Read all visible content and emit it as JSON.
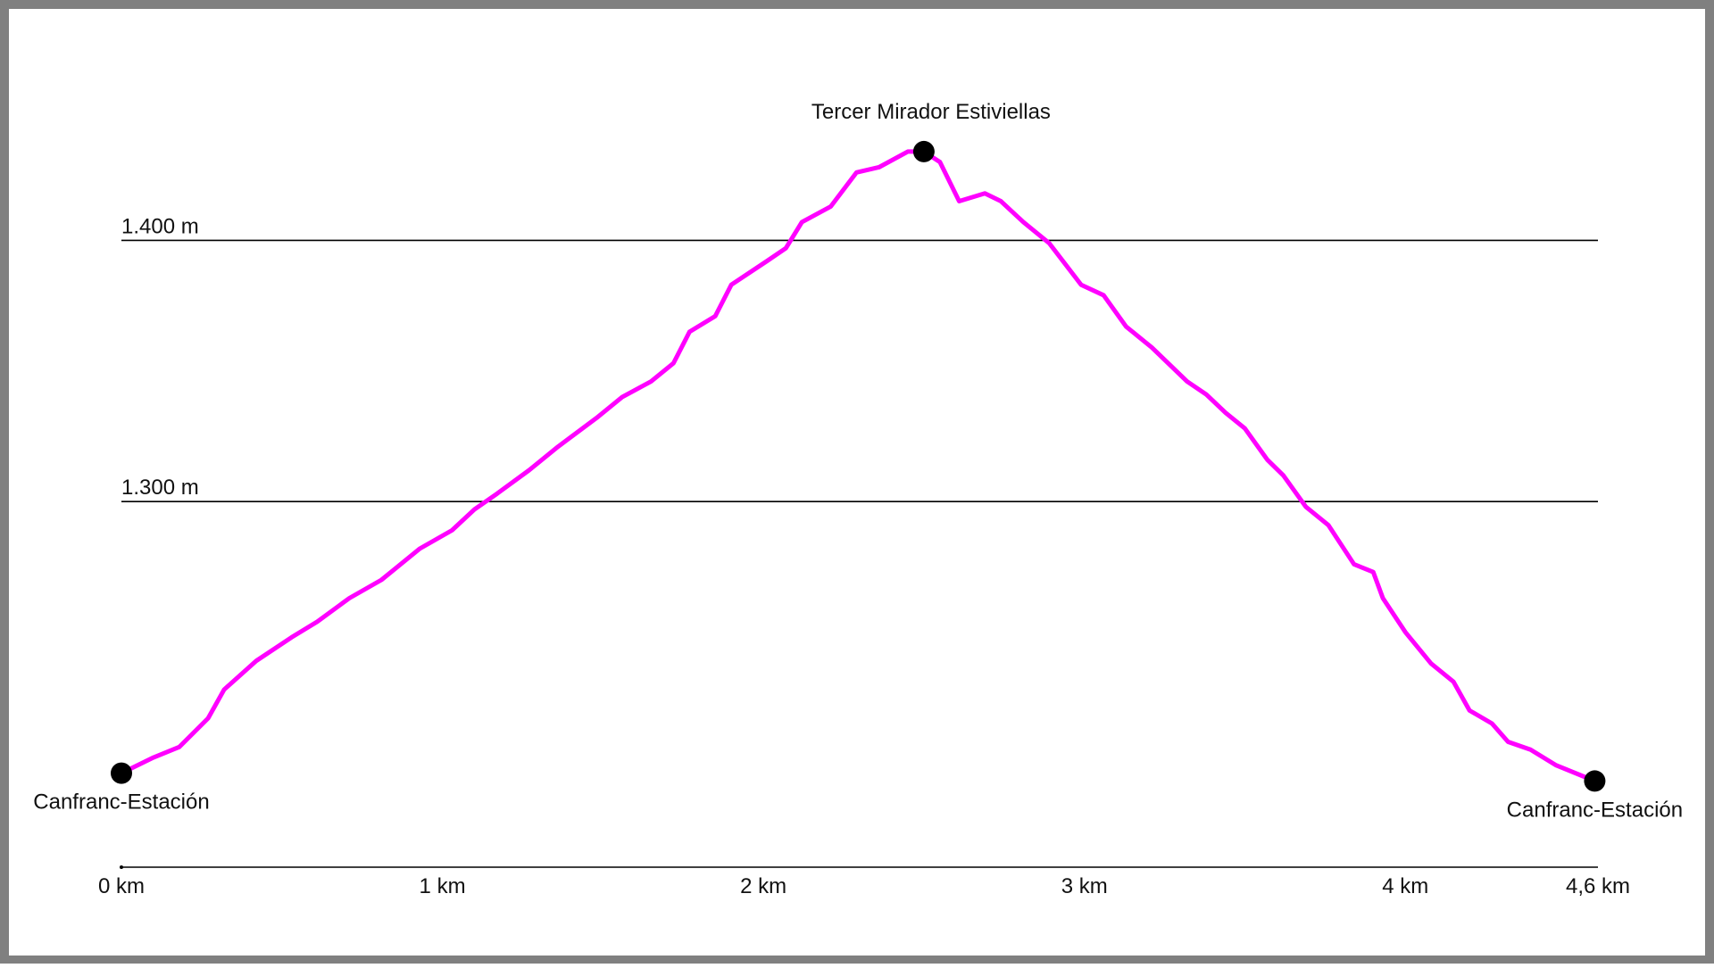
{
  "chart_data": {
    "type": "line",
    "x": [
      0,
      0.1,
      0.18,
      0.27,
      0.32,
      0.42,
      0.53,
      0.61,
      0.71,
      0.81,
      0.93,
      1.03,
      1.1,
      1.17,
      1.27,
      1.36,
      1.48,
      1.56,
      1.65,
      1.72,
      1.77,
      1.85,
      1.9,
      2.01,
      2.07,
      2.12,
      2.21,
      2.29,
      2.36,
      2.45,
      2.5,
      2.55,
      2.61,
      2.69,
      2.74,
      2.81,
      2.89,
      2.99,
      3.06,
      3.13,
      3.21,
      3.32,
      3.38,
      3.44,
      3.5,
      3.57,
      3.62,
      3.69,
      3.76,
      3.84,
      3.9,
      3.93,
      4.0,
      4.08,
      4.15,
      4.2,
      4.27,
      4.32,
      4.39,
      4.47,
      4.59
    ],
    "series": [
      {
        "color": "#ff00ff",
        "values": [
          1196,
          1202,
          1206,
          1217,
          1228,
          1239,
          1248,
          1254,
          1263,
          1270,
          1282,
          1289,
          1297,
          1303,
          1312,
          1321,
          1332,
          1340,
          1346,
          1353,
          1365,
          1371,
          1383,
          1392,
          1397,
          1407,
          1413,
          1426,
          1428,
          1434,
          1434,
          1430,
          1415,
          1418,
          1415,
          1407,
          1399,
          1383,
          1379,
          1367,
          1359,
          1346,
          1341,
          1334,
          1328,
          1316,
          1310,
          1298,
          1291,
          1276,
          1273,
          1263,
          1250,
          1238,
          1231,
          1220,
          1215,
          1208,
          1205,
          1199,
          1193
        ]
      }
    ],
    "markers": [
      {
        "x": 0,
        "y": 1196,
        "label": "Canfranc-Estación"
      },
      {
        "x": 2.5,
        "y": 1434,
        "label": "Tercer Mirador Estiviellas"
      },
      {
        "x": 4.59,
        "y": 1193,
        "label": "Canfranc-Estación"
      }
    ],
    "xlim": [
      0,
      4.6
    ],
    "xticks": [
      {
        "value": 0,
        "label": "0 km"
      },
      {
        "value": 1,
        "label": "1 km"
      },
      {
        "value": 2,
        "label": "2 km"
      },
      {
        "value": 3,
        "label": "3 km"
      },
      {
        "value": 4,
        "label": "4 km"
      },
      {
        "value": 4.6,
        "label": "4,6 km"
      }
    ],
    "ylim": [
      1160,
      1490
    ],
    "yticks": [
      {
        "value": 1300,
        "label": "1.300 m"
      },
      {
        "value": 1400,
        "label": "1.400 m"
      }
    ],
    "grid": true
  }
}
